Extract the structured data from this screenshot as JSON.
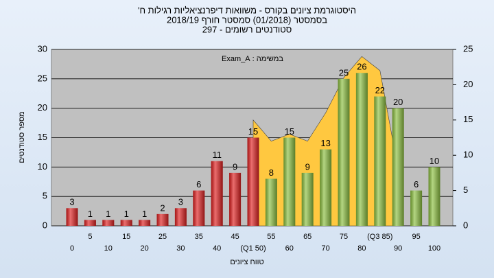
{
  "chart_data": {
    "type": "bar",
    "title": "היסטוגרמת ציונים בקורס - משוואות דיפרנציאליות רגילות ח'",
    "subtitle": "בסמסטר (01/2018) סמסטר חורף 2018/19",
    "subtitle2": "סטודנטים רשומים - 297",
    "annotation": "במשימה : Exam_A",
    "xlabel": "טווח ציונים",
    "ylabel": "מספר סטודנטים",
    "categories": [
      "0",
      "5",
      "10",
      "15",
      "20",
      "25",
      "30",
      "35",
      "40",
      "45",
      "(Q1 50)",
      "55",
      "60",
      "65",
      "70",
      "75",
      "80",
      "(Q3 85)",
      "90",
      "95",
      "100"
    ],
    "values": [
      3,
      1,
      1,
      1,
      1,
      2,
      3,
      6,
      11,
      9,
      15,
      8,
      15,
      9,
      13,
      25,
      26,
      22,
      20,
      6,
      10
    ],
    "colors": [
      "#e02020",
      "#e02020",
      "#e02020",
      "#e02020",
      "#e02020",
      "#e02020",
      "#e02020",
      "#e02020",
      "#e02020",
      "#e02020",
      "#e02020",
      "#8cc040",
      "#8cc040",
      "#8cc040",
      "#8cc040",
      "#8cc040",
      "#8cc040",
      "#8cc040",
      "#8cc040",
      "#8cc040",
      "#8cc040"
    ],
    "area": {
      "x": [
        50,
        55,
        60,
        65,
        70,
        75,
        80,
        85,
        90
      ],
      "values": [
        15,
        12,
        13,
        12,
        16,
        21,
        24,
        22,
        8
      ],
      "color": "#ffc840",
      "axis": "y2"
    },
    "ylim": [
      0,
      30
    ],
    "yticks": [
      0,
      5,
      10,
      15,
      20,
      25,
      30
    ],
    "y2lim": [
      0,
      25
    ],
    "y2ticks": [
      0,
      5,
      10,
      15,
      20,
      25
    ],
    "grid": true
  }
}
